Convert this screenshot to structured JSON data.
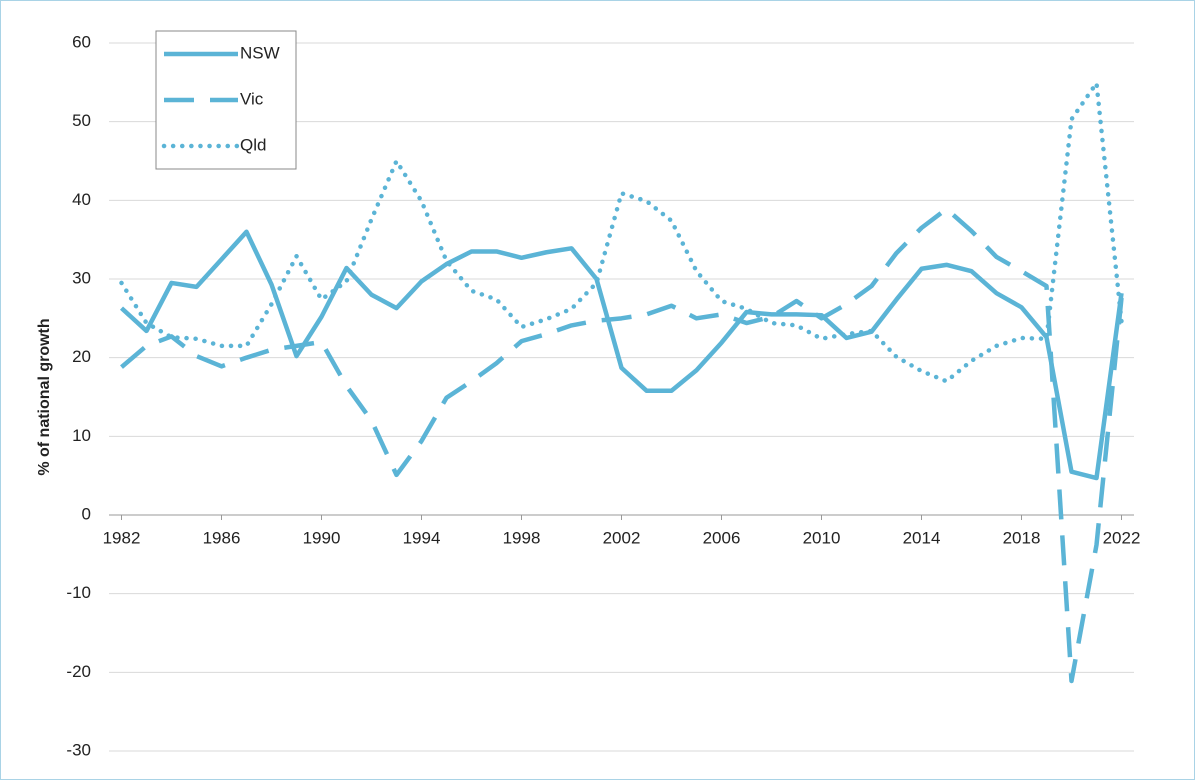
{
  "chart_data": {
    "type": "line",
    "y_label": "% of national growth",
    "x": [
      1982,
      1983,
      1984,
      1985,
      1986,
      1987,
      1988,
      1989,
      1990,
      1991,
      1992,
      1993,
      1994,
      1995,
      1996,
      1997,
      1998,
      1999,
      2000,
      2001,
      2002,
      2003,
      2004,
      2005,
      2006,
      2007,
      2008,
      2009,
      2010,
      2011,
      2012,
      2013,
      2014,
      2015,
      2016,
      2017,
      2018,
      2019,
      2020,
      2021,
      2022
    ],
    "series": [
      {
        "name": "NSW",
        "color": "#5bb4d6",
        "style": "solid",
        "values": [
          26.3,
          23.4,
          29.5,
          29,
          32.5,
          36,
          29.3,
          20.2,
          25.2,
          31.4,
          28,
          26.3,
          29.7,
          31.9,
          33.5,
          33.5,
          32.7,
          33.4,
          33.9,
          30,
          18.7,
          15.8,
          15.8,
          18.4,
          21.9,
          25.8,
          25.5,
          25.5,
          25.4,
          22.5,
          23.3,
          27.4,
          31.3,
          31.8,
          31,
          28.2,
          26.4,
          22.6,
          5.5,
          4.7,
          28.2
        ]
      },
      {
        "name": "Vic",
        "color": "#5bb4d6",
        "style": "dashed",
        "values": [
          18.8,
          21.5,
          22.7,
          20.2,
          18.9,
          20,
          21,
          21.5,
          22,
          16.4,
          12,
          5.1,
          9.4,
          14.9,
          17,
          19.3,
          22.1,
          23,
          24.1,
          24.7,
          25,
          25.5,
          26.6,
          25,
          25.5,
          24.4,
          25.2,
          27.2,
          25,
          26.8,
          29.1,
          33.3,
          36.5,
          38.9,
          36.1,
          32.8,
          31,
          29.1,
          -21.1,
          -3.8,
          27.6
        ]
      },
      {
        "name": "Qld",
        "color": "#5bb4d6",
        "style": "dotted",
        "values": [
          29.5,
          24.4,
          22.6,
          22.4,
          21.5,
          21.5,
          26.8,
          32.9,
          27.4,
          29.7,
          37.6,
          45,
          39.9,
          32.3,
          28.5,
          27.4,
          23.9,
          24.9,
          26.2,
          29.5,
          40.9,
          39.9,
          37.4,
          31,
          27.2,
          26.2,
          24.4,
          24.1,
          22.4,
          23,
          23.4,
          20.1,
          18.3,
          17,
          19.6,
          21.5,
          22.5,
          22.4,
          50.3,
          54.9,
          24.6
        ]
      }
    ],
    "xlim": [
      1981.5,
      2022.5
    ],
    "xticks": [
      1982,
      1986,
      1990,
      1994,
      1998,
      2002,
      2006,
      2010,
      2014,
      2018,
      2022
    ],
    "ylim": [
      -30,
      60
    ],
    "yticks": [
      -30,
      -20,
      -10,
      0,
      10,
      20,
      30,
      40,
      50,
      60
    ],
    "grid": true,
    "legend": "top-left"
  }
}
